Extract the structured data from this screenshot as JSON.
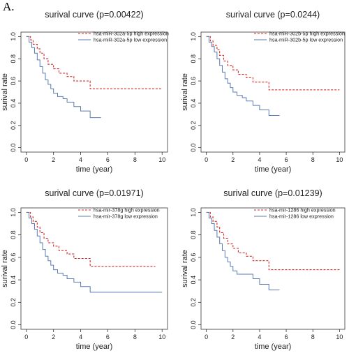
{
  "panel_label": "A.",
  "colors": {
    "high": "#d42a2a",
    "low": "#5b7bb0",
    "axis": "#333333"
  },
  "chart_data": [
    {
      "type": "line",
      "title": "surival curve (p=0.00422)",
      "xlabel": "time (year)",
      "ylabel": "surival rate",
      "xlim": [
        0,
        10
      ],
      "ylim": [
        0,
        1
      ],
      "xticks": [
        "0",
        "2",
        "4",
        "6",
        "8",
        "10"
      ],
      "yticks": [
        "0.0",
        "0.2",
        "0.4",
        "0.6",
        "0.8",
        "1.0"
      ],
      "legend_position": "top-right",
      "series": [
        {
          "name": "hsa-miR-302a-5p high expression",
          "style": "dashed",
          "x": [
            0,
            0.3,
            0.5,
            0.8,
            1.0,
            1.3,
            1.6,
            2.0,
            2.4,
            3.0,
            3.5,
            4.7,
            10
          ],
          "y": [
            1.0,
            0.97,
            0.93,
            0.89,
            0.85,
            0.8,
            0.75,
            0.71,
            0.67,
            0.64,
            0.6,
            0.53,
            0.53
          ]
        },
        {
          "name": "hsa-miR-302a-5p low expression",
          "style": "solid",
          "x": [
            0,
            0.2,
            0.4,
            0.6,
            0.8,
            1.0,
            1.2,
            1.4,
            1.6,
            1.8,
            2.0,
            2.3,
            2.7,
            3.0,
            3.5,
            4.0,
            4.7,
            5.5
          ],
          "y": [
            1.0,
            0.95,
            0.9,
            0.85,
            0.79,
            0.73,
            0.67,
            0.61,
            0.57,
            0.53,
            0.49,
            0.46,
            0.44,
            0.41,
            0.37,
            0.33,
            0.27,
            0.27
          ]
        }
      ]
    },
    {
      "type": "line",
      "title": "surival curve (p=0.0244)",
      "xlabel": "time (year)",
      "ylabel": "surival rate",
      "xlim": [
        0,
        10
      ],
      "ylim": [
        0,
        1
      ],
      "xticks": [
        "0",
        "2",
        "4",
        "6",
        "8",
        "10"
      ],
      "yticks": [
        "0.0",
        "0.2",
        "0.4",
        "0.6",
        "0.8",
        "1.0"
      ],
      "legend_position": "top-right",
      "series": [
        {
          "name": "hsa-miR-302b-5p high expression",
          "style": "dashed",
          "x": [
            0,
            0.3,
            0.5,
            0.8,
            1.0,
            1.3,
            1.6,
            2.0,
            2.4,
            3.0,
            3.5,
            4.7,
            10
          ],
          "y": [
            1.0,
            0.96,
            0.92,
            0.88,
            0.83,
            0.78,
            0.74,
            0.7,
            0.66,
            0.63,
            0.59,
            0.52,
            0.52
          ]
        },
        {
          "name": "hsa-miR-302b-5p low expression",
          "style": "solid",
          "x": [
            0,
            0.2,
            0.4,
            0.6,
            0.8,
            1.0,
            1.2,
            1.4,
            1.6,
            1.8,
            2.0,
            2.3,
            2.7,
            3.0,
            3.5,
            4.0,
            4.7,
            5.5
          ],
          "y": [
            1.0,
            0.95,
            0.91,
            0.86,
            0.8,
            0.74,
            0.68,
            0.62,
            0.58,
            0.54,
            0.5,
            0.47,
            0.45,
            0.42,
            0.38,
            0.34,
            0.29,
            0.29
          ]
        }
      ]
    },
    {
      "type": "line",
      "title": "surival curve (p=0.01971)",
      "xlabel": "time (year)",
      "ylabel": "surival rate",
      "xlim": [
        0,
        10
      ],
      "ylim": [
        0,
        1
      ],
      "xticks": [
        "0",
        "2",
        "4",
        "6",
        "8",
        "10"
      ],
      "yticks": [
        "0.0",
        "0.2",
        "0.4",
        "0.6",
        "0.8",
        "1.0"
      ],
      "legend_position": "top-right",
      "series": [
        {
          "name": "hsa-mir-378g high expression",
          "style": "dashed",
          "x": [
            0,
            0.3,
            0.5,
            0.8,
            1.0,
            1.3,
            1.6,
            2.0,
            2.4,
            3.0,
            3.5,
            4.7,
            9.5
          ],
          "y": [
            1.0,
            0.96,
            0.92,
            0.87,
            0.82,
            0.77,
            0.73,
            0.7,
            0.66,
            0.63,
            0.59,
            0.52,
            0.52
          ]
        },
        {
          "name": "hsa-mir-378g low expression",
          "style": "solid",
          "x": [
            0,
            0.2,
            0.4,
            0.6,
            0.8,
            1.0,
            1.2,
            1.4,
            1.6,
            1.8,
            2.0,
            2.3,
            2.7,
            3.0,
            3.5,
            4.0,
            4.7,
            10
          ],
          "y": [
            1.0,
            0.95,
            0.9,
            0.85,
            0.79,
            0.73,
            0.67,
            0.61,
            0.57,
            0.53,
            0.49,
            0.46,
            0.44,
            0.41,
            0.38,
            0.34,
            0.29,
            0.29
          ]
        }
      ]
    },
    {
      "type": "line",
      "title": "surival curve (p=0.01239)",
      "xlabel": "time (year)",
      "ylabel": "surival rate",
      "xlim": [
        0,
        10
      ],
      "ylim": [
        0,
        1
      ],
      "xticks": [
        "0",
        "2",
        "4",
        "6",
        "8",
        "10"
      ],
      "yticks": [
        "0.0",
        "0.2",
        "0.4",
        "0.6",
        "0.8",
        "1.0"
      ],
      "legend_position": "top-right",
      "series": [
        {
          "name": "hsa-mir-1286 high expression",
          "style": "dashed",
          "x": [
            0,
            0.3,
            0.5,
            0.8,
            1.0,
            1.3,
            1.6,
            2.0,
            2.4,
            3.0,
            3.5,
            4.7,
            10
          ],
          "y": [
            1.0,
            0.96,
            0.92,
            0.87,
            0.82,
            0.77,
            0.72,
            0.68,
            0.64,
            0.61,
            0.57,
            0.49,
            0.49
          ]
        },
        {
          "name": "hsa-mir-1286 low expression",
          "style": "solid",
          "x": [
            0,
            0.2,
            0.4,
            0.6,
            0.8,
            1.0,
            1.2,
            1.4,
            1.6,
            1.8,
            2.0,
            2.3,
            2.7,
            3.0,
            3.5,
            4.0,
            4.7,
            5.5
          ],
          "y": [
            1.0,
            0.95,
            0.9,
            0.84,
            0.78,
            0.72,
            0.66,
            0.6,
            0.56,
            0.52,
            0.48,
            0.45,
            0.45,
            0.45,
            0.41,
            0.36,
            0.31,
            0.31
          ]
        }
      ]
    }
  ]
}
